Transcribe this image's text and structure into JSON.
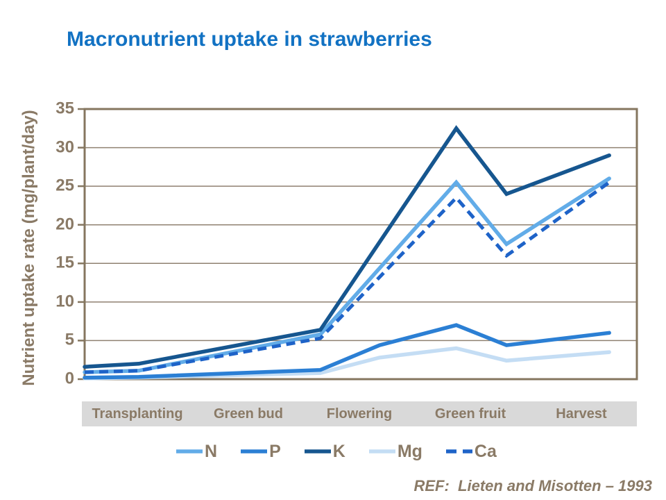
{
  "slide": {
    "title": "Macronutrient uptake in strawberries",
    "reference": "REF:  Lieten and Misotten – 1993"
  },
  "colors": {
    "background": "#FFFFFF",
    "title": "#1272C3",
    "axis_text": "#8A7A66",
    "axis_line": "#85765F",
    "gridline": "#8F8170",
    "band_bg": "#D9D9D9"
  },
  "chart_data": {
    "type": "line",
    "title": "Macronutrient uptake in strawberries",
    "xlabel": "",
    "ylabel": "Nutrient uptake rate (mg/plant/day)",
    "ylim": [
      0,
      35
    ],
    "yticks": [
      0,
      5,
      10,
      15,
      20,
      25,
      30,
      35
    ],
    "grid": "horizontal",
    "legend_position": "bottom",
    "categories": [
      "Transplanting",
      "Green bud",
      "Flowering",
      "Green fruit",
      "Harvest"
    ],
    "x_unit": "fraction of x-axis (0 = axis start, 1 = axis end); stage bands are evenly spaced",
    "series": [
      {
        "name": "N",
        "color": "#62ACE8",
        "dash": false,
        "points": [
          [
            0,
            0.9
          ],
          [
            0.098,
            1.1
          ],
          [
            0.427,
            5.8
          ],
          [
            0.673,
            25.5
          ],
          [
            0.764,
            17.5
          ],
          [
            0.95,
            26.0
          ]
        ]
      },
      {
        "name": "P",
        "color": "#2B7FD4",
        "dash": false,
        "points": [
          [
            0,
            0.2
          ],
          [
            0.098,
            0.3
          ],
          [
            0.427,
            1.2
          ],
          [
            0.534,
            4.4
          ],
          [
            0.673,
            7.0
          ],
          [
            0.764,
            4.4
          ],
          [
            0.95,
            6.0
          ]
        ]
      },
      {
        "name": "K",
        "color": "#16568F",
        "dash": false,
        "points": [
          [
            0,
            1.6
          ],
          [
            0.098,
            2.0
          ],
          [
            0.427,
            6.4
          ],
          [
            0.673,
            32.5
          ],
          [
            0.764,
            24.0
          ],
          [
            0.95,
            29.0
          ]
        ]
      },
      {
        "name": "Mg",
        "color": "#C4DDF4",
        "dash": false,
        "points": [
          [
            0,
            0.1
          ],
          [
            0.098,
            0.2
          ],
          [
            0.427,
            0.8
          ],
          [
            0.534,
            2.8
          ],
          [
            0.673,
            4.0
          ],
          [
            0.764,
            2.4
          ],
          [
            0.95,
            3.5
          ]
        ]
      },
      {
        "name": "Ca",
        "color": "#1E63C8",
        "dash": true,
        "points": [
          [
            0,
            0.9
          ],
          [
            0.098,
            1.1
          ],
          [
            0.427,
            5.3
          ],
          [
            0.673,
            23.5
          ],
          [
            0.764,
            16.0
          ],
          [
            0.95,
            25.5
          ]
        ]
      }
    ]
  }
}
